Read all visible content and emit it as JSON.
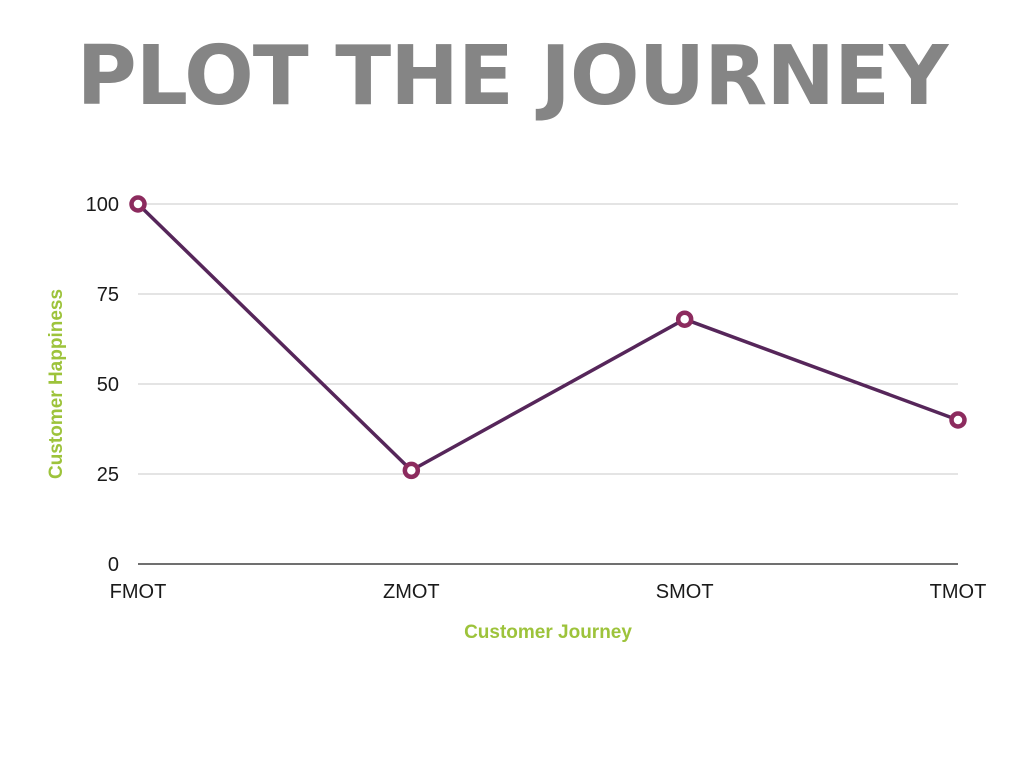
{
  "slide": {
    "title": "PLOT THE JOURNEY"
  },
  "colors": {
    "title": "#858585",
    "line": "#56265a",
    "marker": "#8c2b5e",
    "axis_title": "#9dc33b",
    "grid": "#c8c8c8",
    "baseline": "#1a1a1a"
  },
  "chart_data": {
    "type": "line",
    "title": "",
    "xlabel": "Customer Journey",
    "ylabel": "Customer Happiness",
    "categories": [
      "FMOT",
      "ZMOT",
      "SMOT",
      "TMOT"
    ],
    "series": [
      {
        "values": [
          100,
          26,
          68,
          40
        ]
      }
    ],
    "ylim": [
      0,
      100
    ],
    "yticks": [
      0,
      25,
      50,
      75,
      100
    ],
    "grid": true,
    "legend": "none"
  }
}
